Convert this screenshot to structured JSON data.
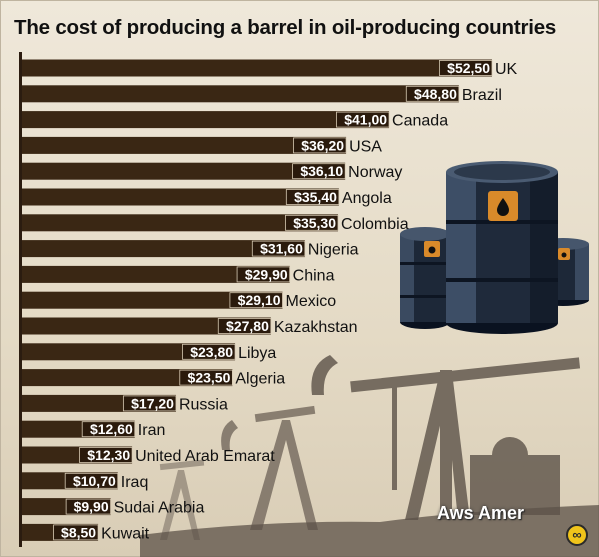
{
  "title": "The cost of producing a barrel in oil-producing countries",
  "watermark": "Aws Amer",
  "logo_glyph": "∞",
  "colors": {
    "bar": "#3a2714",
    "value_box": "#2a1a0c",
    "background": "#e8dfcc"
  },
  "chart_data": {
    "type": "bar",
    "orientation": "horizontal",
    "title": "The cost of producing a barrel in oil-producing countries",
    "categories": [
      "UK",
      "Brazil",
      "Canada",
      "USA",
      "Norway",
      "Angola",
      "Colombia",
      "Nigeria",
      "China",
      "Mexico",
      "Kazakhstan",
      "Libya",
      "Algeria",
      "Russia",
      "Iran",
      "United Arab Emarat",
      "Iraq",
      "Sudai Arabia",
      "Kuwait"
    ],
    "values": [
      52.5,
      48.8,
      41.0,
      36.2,
      36.1,
      35.4,
      35.3,
      31.6,
      29.9,
      29.1,
      27.8,
      23.8,
      23.5,
      17.2,
      12.6,
      12.3,
      10.7,
      9.9,
      8.5
    ],
    "value_labels": [
      "$52,50",
      "$48,80",
      "$41,00",
      "$36,20",
      "$36,10",
      "$35,40",
      "$35,30",
      "$31,60",
      "$29,90",
      "$29,10",
      "$27,80",
      "$23,80",
      "$23,50",
      "$17,20",
      "$12,60",
      "$12,30",
      "$10,70",
      "$9,90",
      "$8,50"
    ],
    "xlim": [
      0,
      52.5
    ],
    "grid": false,
    "legend": "none"
  }
}
